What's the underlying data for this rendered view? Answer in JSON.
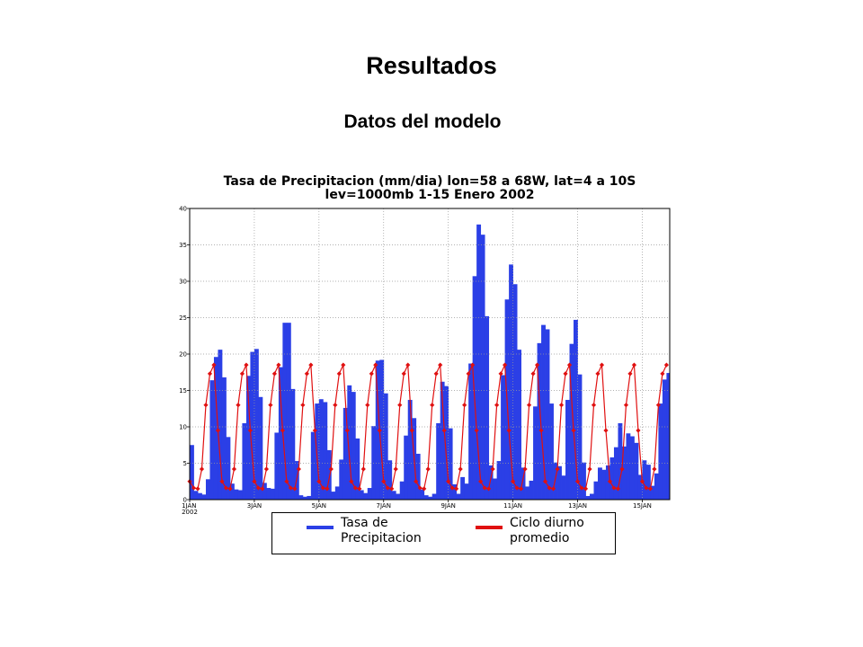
{
  "slide": {
    "title": "Resultados",
    "subtitle": "Datos del modelo"
  },
  "chart_data": {
    "type": "bar-line",
    "title": "Tasa de Precipitacion (mm/dia) lon=58 a 68W, lat=4 a 10S",
    "subtitle": "lev=1000mb 1-15 Enero 2002",
    "grid": true,
    "xlim": [
      1,
      15.85
    ],
    "xticks": [
      {
        "value": 1,
        "label": "1JAN\n2002"
      },
      {
        "value": 3,
        "label": "3JAN"
      },
      {
        "value": 5,
        "label": "5JAN"
      },
      {
        "value": 7,
        "label": "7JAN"
      },
      {
        "value": 9,
        "label": "9JAN"
      },
      {
        "value": 11,
        "label": "11JAN"
      },
      {
        "value": 13,
        "label": "13JAN"
      },
      {
        "value": 15,
        "label": "15JAN"
      }
    ],
    "ylim": [
      0,
      40
    ],
    "yticks": [
      0,
      5,
      10,
      15,
      20,
      25,
      30,
      35,
      40
    ],
    "x": [
      1,
      1.125,
      1.25,
      1.375,
      1.5,
      1.625,
      1.75,
      1.875,
      2,
      2.125,
      2.25,
      2.375,
      2.5,
      2.625,
      2.75,
      2.875,
      3,
      3.125,
      3.25,
      3.375,
      3.5,
      3.625,
      3.75,
      3.875,
      4,
      4.125,
      4.25,
      4.375,
      4.5,
      4.625,
      4.75,
      4.875,
      5,
      5.125,
      5.25,
      5.375,
      5.5,
      5.625,
      5.75,
      5.875,
      6,
      6.125,
      6.25,
      6.375,
      6.5,
      6.625,
      6.75,
      6.875,
      7,
      7.125,
      7.25,
      7.375,
      7.5,
      7.625,
      7.75,
      7.875,
      8,
      8.125,
      8.25,
      8.375,
      8.5,
      8.625,
      8.75,
      8.875,
      9,
      9.125,
      9.25,
      9.375,
      9.5,
      9.625,
      9.75,
      9.875,
      10,
      10.125,
      10.25,
      10.375,
      10.5,
      10.625,
      10.75,
      10.875,
      11,
      11.125,
      11.25,
      11.375,
      11.5,
      11.625,
      11.75,
      11.875,
      12,
      12.125,
      12.25,
      12.375,
      12.5,
      12.625,
      12.75,
      12.875,
      13,
      13.125,
      13.25,
      13.375,
      13.5,
      13.625,
      13.75,
      13.875,
      14,
      14.125,
      14.25,
      14.375,
      14.5,
      14.625,
      14.75,
      14.875,
      15,
      15.125,
      15.25,
      15.375,
      15.5,
      15.625,
      15.75
    ],
    "series": [
      {
        "name": "Tasa de Precipitacion",
        "mark": "bar",
        "color": "#2b3fe6",
        "values": [
          7.5,
          1.2,
          0.9,
          0.7,
          2.8,
          16.4,
          19.6,
          20.6,
          16.8,
          8.6,
          2.2,
          1.4,
          1.3,
          10.5,
          17,
          20.3,
          20.7,
          14.1,
          2.3,
          1.6,
          1.5,
          9.2,
          18.2,
          24.3,
          24.3,
          15.2,
          5.3,
          0.6,
          0.4,
          0.5,
          9.3,
          13.2,
          13.8,
          13.4,
          6.8,
          1.1,
          1.8,
          5.5,
          12.6,
          15.7,
          14.8,
          8.4,
          1.3,
          0.9,
          1.6,
          10.1,
          19.1,
          19.2,
          14.6,
          5.4,
          1.2,
          0.8,
          2.5,
          8.8,
          13.7,
          11.2,
          6.3,
          1.4,
          0.6,
          0.4,
          0.8,
          10.5,
          16.2,
          15.6,
          9.8,
          2.1,
          0.8,
          3.1,
          2.2,
          18.7,
          30.7,
          37.8,
          36.4,
          25.2,
          4.7,
          2.9,
          5.3,
          17.1,
          27.5,
          32.3,
          29.6,
          20.6,
          4.4,
          1.8,
          2.6,
          12.8,
          21.5,
          24.0,
          23.4,
          13.2,
          5.1,
          4.6,
          3.3,
          13.7,
          21.4,
          24.7,
          17.2,
          5.1,
          0.5,
          0.8,
          2.5,
          4.4,
          4.1,
          4.7,
          5.8,
          7.2,
          10.5,
          7.3,
          9.1,
          8.7,
          7.8,
          3.4,
          5.4,
          4.8,
          1.9,
          3.6,
          13.2,
          16.5,
          17.4
        ]
      },
      {
        "name": "Ciclo diurno promedio",
        "mark": "line",
        "color": "#e01010",
        "values": [
          2.5,
          1.6,
          1.5,
          4.2,
          13,
          17.3,
          18.5,
          9.5,
          2.5,
          1.6,
          1.5,
          4.2,
          13,
          17.3,
          18.5,
          9.5,
          2.5,
          1.6,
          1.5,
          4.2,
          13,
          17.3,
          18.5,
          9.5,
          2.5,
          1.6,
          1.5,
          4.2,
          13,
          17.3,
          18.5,
          9.5,
          2.5,
          1.6,
          1.5,
          4.2,
          13,
          17.3,
          18.5,
          9.5,
          2.5,
          1.6,
          1.5,
          4.2,
          13,
          17.3,
          18.5,
          9.5,
          2.5,
          1.6,
          1.5,
          4.2,
          13,
          17.3,
          18.5,
          9.5,
          2.5,
          1.6,
          1.5,
          4.2,
          13,
          17.3,
          18.5,
          9.5,
          2.5,
          1.6,
          1.5,
          4.2,
          13,
          17.3,
          18.5,
          9.5,
          2.5,
          1.6,
          1.5,
          4.2,
          13,
          17.3,
          18.5,
          9.5,
          2.5,
          1.6,
          1.5,
          4.2,
          13,
          17.3,
          18.5,
          9.5,
          2.5,
          1.6,
          1.5,
          4.2,
          13,
          17.3,
          18.5,
          9.5,
          2.5,
          1.6,
          1.5,
          4.2,
          13,
          17.3,
          18.5,
          9.5,
          2.5,
          1.6,
          1.5,
          4.2,
          13,
          17.3,
          18.5,
          9.5,
          2.5,
          1.6,
          1.5,
          4.2,
          13,
          17.3,
          18.5
        ]
      }
    ]
  }
}
